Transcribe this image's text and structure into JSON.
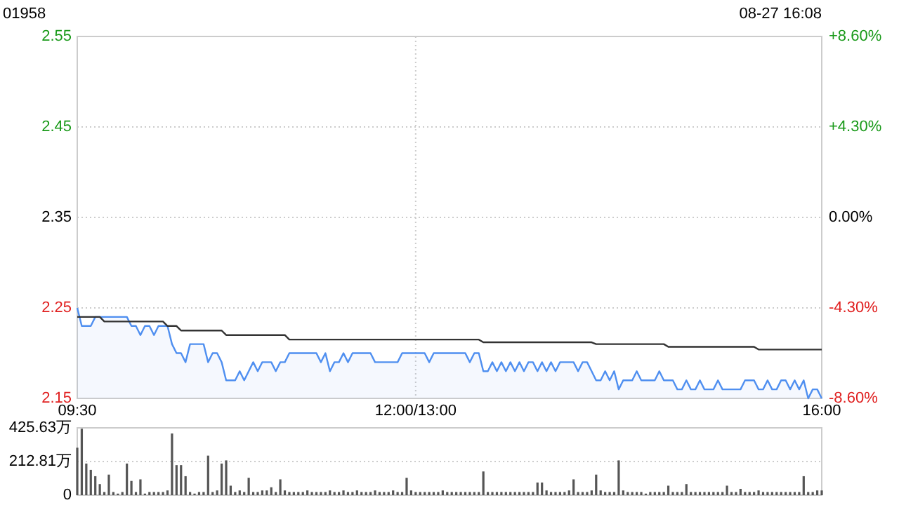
{
  "chart_data": [
    {
      "type": "line",
      "title": "01958",
      "annotations": [
        "08-27 16:08"
      ],
      "categories": [
        "09:30",
        null,
        null,
        null,
        null,
        null,
        null,
        null,
        null,
        null,
        null,
        null,
        null,
        null,
        null,
        null,
        null,
        null,
        null,
        null,
        null,
        null,
        null,
        null,
        null,
        null,
        null,
        null,
        null,
        null,
        null,
        null,
        null,
        null,
        null,
        null,
        null,
        null,
        null,
        null,
        null,
        null,
        null,
        null,
        null,
        null,
        null,
        null,
        null,
        null,
        null,
        null,
        null,
        null,
        null,
        null,
        null,
        null,
        null,
        null,
        null,
        null,
        null,
        null,
        null,
        null,
        null,
        null,
        null,
        null,
        null,
        null,
        null,
        null,
        null,
        "12:00/13:00",
        null,
        null,
        null,
        null,
        null,
        null,
        null,
        null,
        null,
        null,
        null,
        null,
        null,
        null,
        null,
        null,
        null,
        null,
        null,
        null,
        null,
        null,
        null,
        null,
        null,
        null,
        null,
        null,
        null,
        null,
        null,
        null,
        null,
        null,
        null,
        null,
        null,
        null,
        null,
        null,
        null,
        null,
        null,
        null,
        null,
        null,
        null,
        null,
        null,
        null,
        null,
        null,
        null,
        null,
        null,
        null,
        null,
        null,
        null,
        null,
        null,
        null,
        null,
        null,
        null,
        null,
        null,
        null,
        null,
        null,
        null,
        null,
        null,
        null,
        null,
        null,
        null,
        null,
        null,
        null,
        null,
        null,
        null,
        null,
        null,
        null,
        null,
        null,
        null,
        "16:00"
      ],
      "ylim": [
        2.15,
        2.55
      ],
      "yticks": [
        2.15,
        2.25,
        2.35,
        2.45,
        2.55
      ],
      "y2lim": [
        -8.6,
        8.6
      ],
      "y2ticks": [
        {
          "value": -8.6,
          "label": "-8.60%"
        },
        {
          "value": -4.3,
          "label": "-4.30%"
        },
        {
          "value": 0,
          "label": "0.00%"
        },
        {
          "value": 4.3,
          "label": "+4.30%"
        },
        {
          "value": 8.6,
          "label": "+8.60%"
        }
      ],
      "grid": true,
      "series": [
        {
          "type": "area",
          "color": "#4f8ff0",
          "values": [
            2.25,
            2.23,
            2.23,
            2.23,
            2.24,
            2.24,
            2.24,
            2.24,
            2.24,
            2.24,
            2.24,
            2.24,
            2.23,
            2.23,
            2.22,
            2.23,
            2.23,
            2.22,
            2.23,
            2.23,
            2.23,
            2.21,
            2.2,
            2.2,
            2.19,
            2.21,
            2.21,
            2.21,
            2.21,
            2.19,
            2.2,
            2.2,
            2.19,
            2.17,
            2.17,
            2.17,
            2.18,
            2.17,
            2.18,
            2.19,
            2.18,
            2.19,
            2.19,
            2.19,
            2.18,
            2.19,
            2.19,
            2.2,
            2.2,
            2.2,
            2.2,
            2.2,
            2.2,
            2.2,
            2.19,
            2.2,
            2.18,
            2.19,
            2.19,
            2.2,
            2.19,
            2.2,
            2.2,
            2.2,
            2.2,
            2.2,
            2.19,
            2.19,
            2.19,
            2.19,
            2.19,
            2.19,
            2.2,
            2.2,
            2.2,
            2.2,
            2.2,
            2.2,
            2.19,
            2.2,
            2.2,
            2.2,
            2.2,
            2.2,
            2.2,
            2.2,
            2.2,
            2.19,
            2.2,
            2.2,
            2.18,
            2.18,
            2.19,
            2.18,
            2.19,
            2.18,
            2.19,
            2.18,
            2.19,
            2.18,
            2.19,
            2.19,
            2.18,
            2.19,
            2.18,
            2.19,
            2.18,
            2.19,
            2.19,
            2.19,
            2.19,
            2.18,
            2.19,
            2.19,
            2.18,
            2.17,
            2.17,
            2.18,
            2.17,
            2.18,
            2.16,
            2.17,
            2.17,
            2.17,
            2.18,
            2.17,
            2.17,
            2.17,
            2.17,
            2.18,
            2.17,
            2.17,
            2.17,
            2.16,
            2.16,
            2.17,
            2.16,
            2.16,
            2.17,
            2.16,
            2.16,
            2.16,
            2.17,
            2.16,
            2.16,
            2.16,
            2.16,
            2.16,
            2.17,
            2.17,
            2.17,
            2.16,
            2.16,
            2.17,
            2.16,
            2.16,
            2.17,
            2.17,
            2.16,
            2.17,
            2.16,
            2.17,
            2.15,
            2.16,
            2.16,
            2.15
          ]
        },
        {
          "color": "#333333",
          "values": [
            2.24,
            2.24,
            2.24,
            2.24,
            2.24,
            2.24,
            2.235,
            2.235,
            2.235,
            2.235,
            2.235,
            2.235,
            2.235,
            2.235,
            2.235,
            2.235,
            2.235,
            2.235,
            2.235,
            2.235,
            2.23,
            2.23,
            2.23,
            2.225,
            2.225,
            2.225,
            2.225,
            2.225,
            2.225,
            2.225,
            2.225,
            2.225,
            2.225,
            2.22,
            2.22,
            2.22,
            2.22,
            2.22,
            2.22,
            2.22,
            2.22,
            2.22,
            2.22,
            2.22,
            2.22,
            2.22,
            2.22,
            2.215,
            2.215,
            2.215,
            2.215,
            2.215,
            2.215,
            2.215,
            2.215,
            2.215,
            2.215,
            2.215,
            2.215,
            2.215,
            2.215,
            2.215,
            2.215,
            2.215,
            2.215,
            2.215,
            2.215,
            2.215,
            2.215,
            2.215,
            2.215,
            2.215,
            2.215,
            2.215,
            2.215,
            2.215,
            2.215,
            2.215,
            2.215,
            2.215,
            2.215,
            2.215,
            2.215,
            2.215,
            2.215,
            2.215,
            2.215,
            2.215,
            2.215,
            2.215,
            2.212,
            2.212,
            2.212,
            2.212,
            2.212,
            2.212,
            2.212,
            2.212,
            2.212,
            2.212,
            2.212,
            2.212,
            2.212,
            2.212,
            2.212,
            2.212,
            2.212,
            2.212,
            2.212,
            2.212,
            2.212,
            2.212,
            2.212,
            2.212,
            2.212,
            2.21,
            2.21,
            2.21,
            2.21,
            2.21,
            2.21,
            2.21,
            2.21,
            2.21,
            2.21,
            2.21,
            2.21,
            2.21,
            2.21,
            2.21,
            2.21,
            2.207,
            2.207,
            2.207,
            2.207,
            2.207,
            2.207,
            2.207,
            2.207,
            2.207,
            2.207,
            2.207,
            2.207,
            2.207,
            2.207,
            2.207,
            2.207,
            2.207,
            2.207,
            2.207,
            2.207,
            2.204,
            2.204,
            2.204,
            2.204,
            2.204,
            2.204,
            2.204,
            2.204,
            2.204,
            2.204,
            2.204,
            2.204,
            2.204,
            2.204,
            2.204
          ]
        }
      ]
    },
    {
      "type": "bar",
      "color": "#555555",
      "tick_labels": "y",
      "grid": "y",
      "categories": [
        null,
        null,
        null,
        null,
        null,
        null,
        null,
        null,
        null,
        null,
        null,
        null,
        null,
        null,
        null,
        null,
        null,
        null,
        null,
        null,
        null,
        null,
        null,
        null,
        null,
        null,
        null,
        null,
        null,
        null,
        null,
        null,
        null,
        null,
        null,
        null,
        null,
        null,
        null,
        null,
        null,
        null,
        null,
        null,
        null,
        null,
        null,
        null,
        null,
        null,
        null,
        null,
        null,
        null,
        null,
        null,
        null,
        null,
        null,
        null,
        null,
        null,
        null,
        null,
        null,
        null,
        null,
        null,
        null,
        null,
        null,
        null,
        null,
        null,
        null,
        null,
        null,
        null,
        null,
        null,
        null,
        null,
        null,
        null,
        null,
        null,
        null,
        null,
        null,
        null,
        null,
        null,
        null,
        null,
        null,
        null,
        null,
        null,
        null,
        null,
        null,
        null,
        null,
        null,
        null,
        null,
        null,
        null,
        null,
        null,
        null,
        null,
        null,
        null,
        null,
        null,
        null,
        null,
        null,
        null,
        null,
        null,
        null,
        null,
        null,
        null,
        null,
        null,
        null,
        null,
        null,
        null,
        null,
        null,
        null,
        null,
        null,
        null,
        null,
        null,
        null,
        null,
        null,
        null,
        null,
        null,
        null,
        null,
        null,
        null,
        null,
        null,
        null,
        null,
        null,
        null,
        null,
        null,
        null,
        null,
        null,
        null,
        null,
        null,
        null,
        null
      ],
      "ylim": [
        0,
        425.63
      ],
      "yticks": [
        0,
        {
          "value": 212.81,
          "label": "212.81万"
        },
        {
          "value": 425.63,
          "label": "425.63万"
        }
      ],
      "values": [
        300,
        420,
        200,
        160,
        120,
        70,
        20,
        130,
        20,
        10,
        20,
        200,
        90,
        20,
        100,
        10,
        20,
        20,
        20,
        20,
        30,
        390,
        190,
        190,
        120,
        20,
        10,
        20,
        20,
        250,
        20,
        30,
        200,
        220,
        60,
        20,
        30,
        20,
        110,
        20,
        20,
        30,
        30,
        50,
        20,
        100,
        30,
        20,
        20,
        20,
        20,
        30,
        20,
        20,
        20,
        20,
        30,
        20,
        20,
        30,
        20,
        20,
        30,
        20,
        20,
        20,
        30,
        20,
        20,
        20,
        30,
        20,
        20,
        110,
        30,
        20,
        20,
        20,
        20,
        20,
        20,
        30,
        20,
        20,
        20,
        20,
        20,
        20,
        20,
        20,
        150,
        20,
        20,
        20,
        20,
        20,
        20,
        20,
        20,
        20,
        20,
        20,
        80,
        80,
        30,
        20,
        20,
        20,
        20,
        30,
        100,
        20,
        20,
        20,
        30,
        130,
        30,
        20,
        20,
        20,
        220,
        30,
        20,
        20,
        20,
        20,
        10,
        20,
        20,
        20,
        20,
        60,
        20,
        20,
        20,
        70,
        20,
        20,
        20,
        20,
        20,
        20,
        20,
        20,
        60,
        20,
        20,
        40,
        20,
        20,
        20,
        30,
        20,
        20,
        20,
        20,
        20,
        20,
        20,
        20,
        20,
        120,
        20,
        20,
        30,
        30
      ]
    }
  ]
}
